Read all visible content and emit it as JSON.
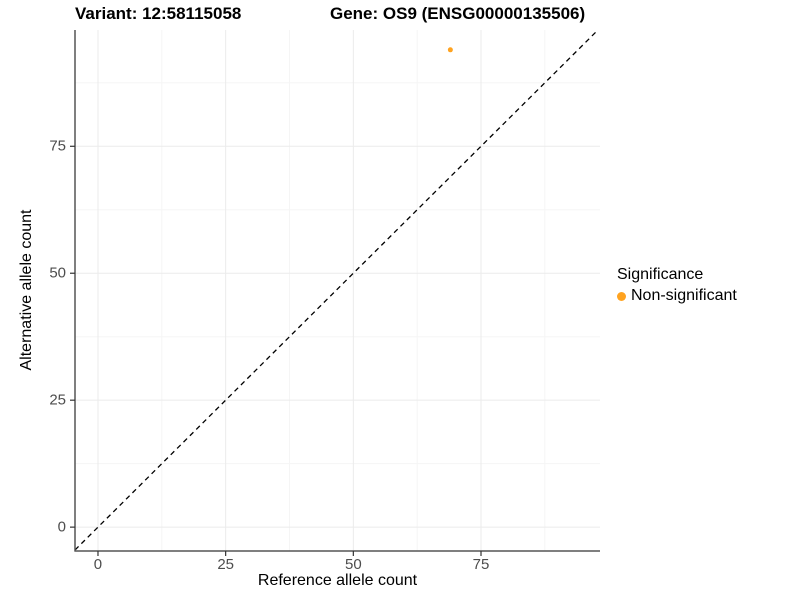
{
  "chart_data": {
    "type": "scatter",
    "title_left": "Variant: 12:58115058",
    "title_right": "Gene: OS9 (ENSG00000135506)",
    "xlabel": "Reference allele count",
    "ylabel": "Alternative allele count",
    "x_ticks": [
      0,
      25,
      50,
      75
    ],
    "y_ticks": [
      0,
      25,
      50,
      75
    ],
    "x_minor_ticks": [
      12.5,
      37.5,
      62.5,
      87.5
    ],
    "y_minor_ticks": [
      12.5,
      37.5,
      62.5,
      87.5
    ],
    "xlim": [
      -4.5,
      98.3
    ],
    "ylim": [
      -4.7,
      97.9
    ],
    "grid": "major-and-minor",
    "legend": {
      "title": "Significance",
      "position": "right",
      "entries": [
        {
          "label": "Non-significant",
          "color": "#FFA320"
        }
      ]
    },
    "series": [
      {
        "name": "Non-significant",
        "color": "#FFA320",
        "point_radius": 2.5,
        "points": [
          {
            "x": 69,
            "y": 94
          }
        ]
      }
    ],
    "reference_line": {
      "equation": "y = x",
      "style": "dashed",
      "color": "#000000"
    }
  },
  "style": {
    "background": "#FFFFFF",
    "grid_major_color": "#EBEBEB",
    "grid_minor_color": "#F5F5F5",
    "axis_line_color": "#555555",
    "tick_mark_color": "#333333",
    "tick_label_color": "#4D4D4D"
  }
}
